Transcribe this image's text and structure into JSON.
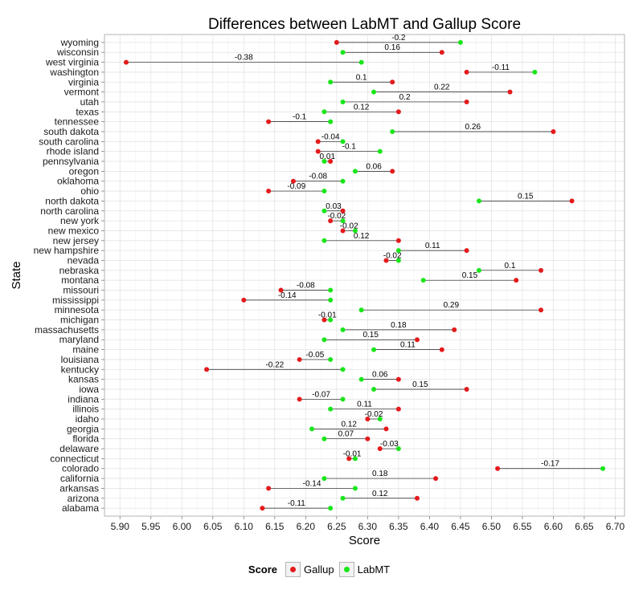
{
  "colors": {
    "gallup": "#e41a1c",
    "labmt": "#19e619"
  },
  "chart_data": {
    "type": "scatter",
    "title": "Differences between LabMT and Gallup Score",
    "xlabel": "Score",
    "ylabel": "State",
    "xlim": [
      5.875,
      6.715
    ],
    "xticks": [
      "5.90",
      "5.95",
      "6.00",
      "6.05",
      "6.10",
      "6.15",
      "6.20",
      "6.25",
      "6.30",
      "6.35",
      "6.40",
      "6.45",
      "6.50",
      "6.55",
      "6.60",
      "6.65",
      "6.70"
    ],
    "grid": true,
    "legend": {
      "title": "Score",
      "position": "bottom",
      "entries": [
        "Gallup",
        "LabMT"
      ]
    },
    "categories": [
      "alabama",
      "arizona",
      "arkansas",
      "california",
      "colorado",
      "connecticut",
      "delaware",
      "florida",
      "georgia",
      "idaho",
      "illinois",
      "indiana",
      "iowa",
      "kansas",
      "kentucky",
      "louisiana",
      "maine",
      "maryland",
      "massachusetts",
      "michigan",
      "minnesota",
      "mississippi",
      "missouri",
      "montana",
      "nebraska",
      "nevada",
      "new hampshire",
      "new jersey",
      "new mexico",
      "new york",
      "north carolina",
      "north dakota",
      "ohio",
      "oklahoma",
      "oregon",
      "pennsylvania",
      "rhode island",
      "south carolina",
      "south dakota",
      "tennessee",
      "texas",
      "utah",
      "vermont",
      "virginia",
      "washington",
      "west virginia",
      "wisconsin",
      "wyoming"
    ],
    "series": [
      {
        "name": "Gallup",
        "values": [
          6.13,
          6.38,
          6.14,
          6.41,
          6.51,
          6.27,
          6.32,
          6.3,
          6.33,
          6.3,
          6.35,
          6.19,
          6.46,
          6.35,
          6.04,
          6.19,
          6.42,
          6.38,
          6.44,
          6.23,
          6.58,
          6.1,
          6.16,
          6.54,
          6.58,
          6.33,
          6.46,
          6.35,
          6.26,
          6.24,
          6.26,
          6.63,
          6.14,
          6.18,
          6.34,
          6.24,
          6.22,
          6.22,
          6.6,
          6.14,
          6.35,
          6.46,
          6.53,
          6.34,
          6.46,
          5.91,
          6.42,
          6.25
        ]
      },
      {
        "name": "LabMT",
        "values": [
          6.24,
          6.26,
          6.28,
          6.23,
          6.68,
          6.28,
          6.35,
          6.23,
          6.21,
          6.32,
          6.24,
          6.26,
          6.31,
          6.29,
          6.26,
          6.24,
          6.31,
          6.23,
          6.26,
          6.24,
          6.29,
          6.24,
          6.24,
          6.39,
          6.48,
          6.35,
          6.35,
          6.23,
          6.28,
          6.26,
          6.23,
          6.48,
          6.23,
          6.26,
          6.28,
          6.23,
          6.32,
          6.26,
          6.34,
          6.24,
          6.23,
          6.26,
          6.31,
          6.24,
          6.57,
          6.29,
          6.26,
          6.45
        ]
      }
    ],
    "differences": [
      "-0.11",
      "0.12",
      "-0.14",
      "0.18",
      "-0.17",
      "-0.01",
      "-0.03",
      "0.07",
      "0.12",
      "-0.02",
      "0.11",
      "-0.07",
      "0.15",
      "0.06",
      "-0.22",
      "-0.05",
      "0.11",
      "0.15",
      "0.18",
      "-0.01",
      "0.29",
      "-0.14",
      "-0.08",
      "0.15",
      "0.1",
      "-0.02",
      "0.11",
      "0.12",
      "-0.02",
      "-0.02",
      "0.03",
      "0.15",
      "-0.09",
      "-0.08",
      "0.06",
      "0.01",
      "-0.1",
      "-0.04",
      "0.26",
      "-0.1",
      "0.12",
      "0.2",
      "0.22",
      "0.1",
      "-0.11",
      "-0.38",
      "0.16",
      "-0.2"
    ]
  }
}
